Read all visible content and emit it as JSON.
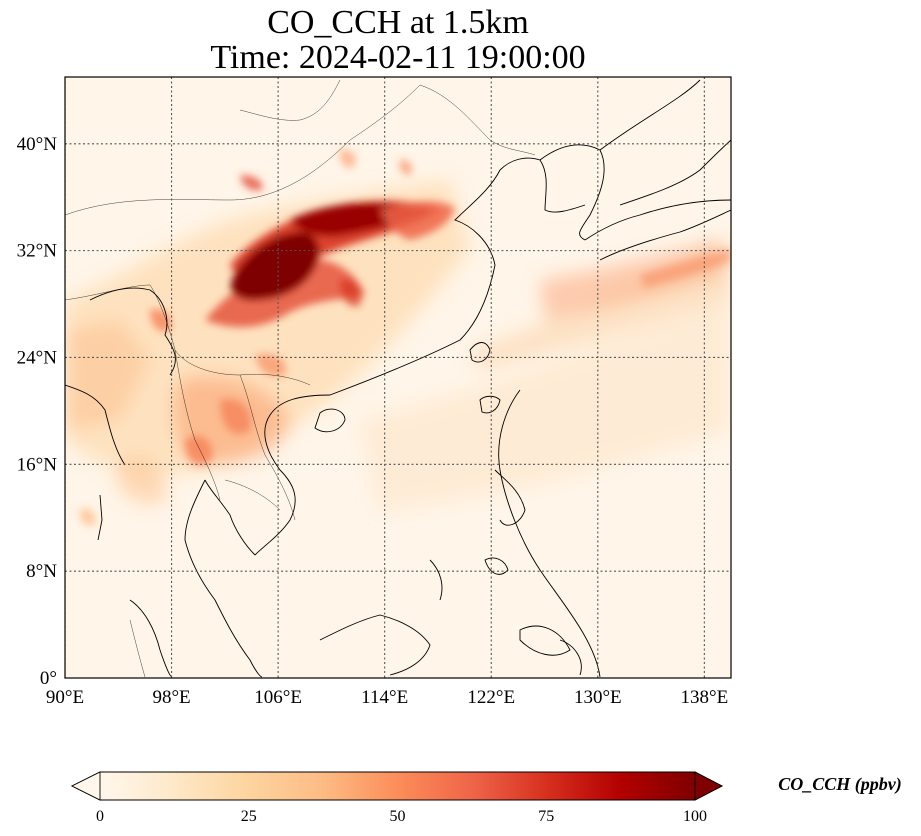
{
  "title": {
    "line1": "CO_CCH at 1.5km",
    "line2": "Time: 2024-02-11 19:00:00"
  },
  "map": {
    "projection": "PlateCarree",
    "lon_range": [
      90,
      140
    ],
    "lat_range": [
      0,
      45
    ],
    "gridlines": "dotted",
    "coastlines": true,
    "borders": true,
    "x_ticks": [
      {
        "value": 90,
        "label": "90°E"
      },
      {
        "value": 98,
        "label": "98°E"
      },
      {
        "value": 106,
        "label": "106°E"
      },
      {
        "value": 114,
        "label": "114°E"
      },
      {
        "value": 122,
        "label": "122°E"
      },
      {
        "value": 130,
        "label": "130°E"
      },
      {
        "value": 138,
        "label": "138°E"
      }
    ],
    "y_ticks": [
      {
        "value": 0,
        "label": "0°"
      },
      {
        "value": 8,
        "label": "8°N"
      },
      {
        "value": 16,
        "label": "16°N"
      },
      {
        "value": 24,
        "label": "24°N"
      },
      {
        "value": 32,
        "label": "32°N"
      },
      {
        "value": 40,
        "label": "40°N"
      }
    ]
  },
  "colorbar": {
    "label": "CO_CCH (ppbv)",
    "colormap": "OrRd",
    "min": 0,
    "max": 100,
    "extend": "both",
    "ticks": [
      {
        "value": 0,
        "label": "0"
      },
      {
        "value": 25,
        "label": "25"
      },
      {
        "value": 50,
        "label": "50"
      },
      {
        "value": 75,
        "label": "75"
      },
      {
        "value": 100,
        "label": "100"
      }
    ],
    "colors": [
      "#fff7ec",
      "#fee8c8",
      "#fdd49e",
      "#fdbb84",
      "#fc8d59",
      "#ef6548",
      "#d7301f",
      "#b30000",
      "#7f0000"
    ]
  },
  "chart_data": {
    "type": "heatmap",
    "variable": "CO_CCH",
    "units": "ppbv",
    "level": "1.5km",
    "time": "2024-02-11 19:00:00",
    "vmin": 0,
    "vmax": 100,
    "hotspots": [
      {
        "lon": 106.0,
        "lat": 31.0,
        "value": 100
      },
      {
        "lon": 110.5,
        "lat": 34.5,
        "value": 95
      },
      {
        "lon": 113.0,
        "lat": 35.5,
        "value": 80
      },
      {
        "lon": 115.5,
        "lat": 34.5,
        "value": 70
      },
      {
        "lon": 109.0,
        "lat": 28.5,
        "value": 60
      },
      {
        "lon": 103.5,
        "lat": 27.0,
        "value": 55
      },
      {
        "lon": 104.5,
        "lat": 19.5,
        "value": 55
      },
      {
        "lon": 99.5,
        "lat": 17.0,
        "value": 50
      },
      {
        "lon": 101.5,
        "lat": 22.0,
        "value": 45
      },
      {
        "lon": 129.0,
        "lat": 27.0,
        "value": 35
      },
      {
        "lon": 134.5,
        "lat": 29.0,
        "value": 30
      },
      {
        "lon": 92.0,
        "lat": 25.5,
        "value": 35
      },
      {
        "lon": 118.0,
        "lat": 38.5,
        "value": 30
      }
    ]
  }
}
